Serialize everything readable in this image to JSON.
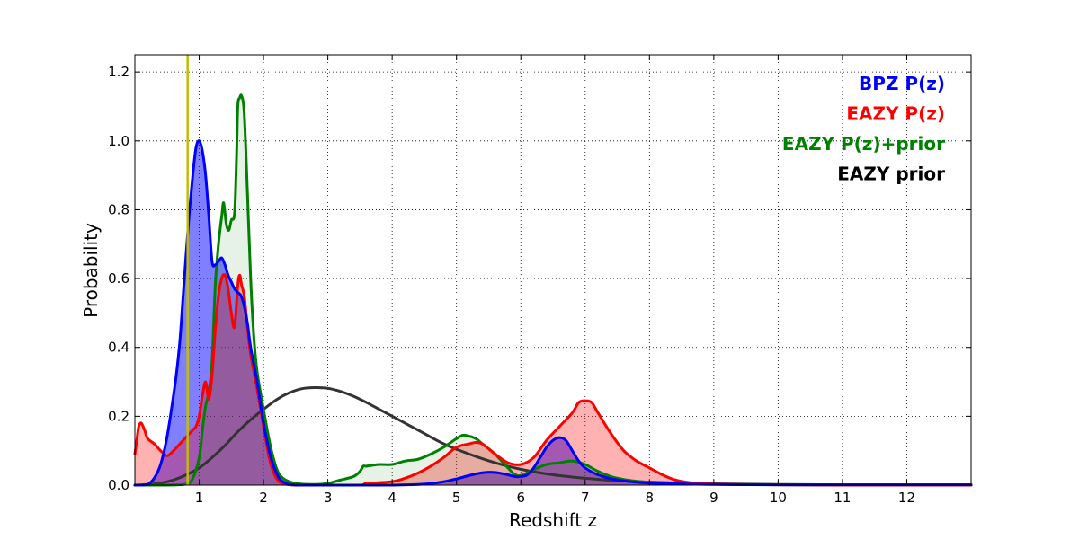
{
  "chart_data": {
    "type": "area",
    "xlabel": "Redshift z",
    "ylabel": "Probability",
    "xlim": [
      0,
      13
    ],
    "ylim": [
      0,
      1.25
    ],
    "x_ticks": [
      1,
      2,
      3,
      4,
      5,
      6,
      7,
      8,
      9,
      10,
      11,
      12
    ],
    "y_ticks": [
      0.0,
      0.2,
      0.4,
      0.6,
      0.8,
      1.0,
      1.2
    ],
    "y_tick_labels": [
      "0.0",
      "0.2",
      "0.4",
      "0.6",
      "0.8",
      "1.0",
      "1.2"
    ],
    "grid": true,
    "legend_position": "top-right",
    "vline": {
      "x": 0.82,
      "color": "#bfbf00"
    },
    "series": [
      {
        "name": "BPZ P(z)",
        "color": "#0000ff",
        "fill": "#0000ff",
        "fill_opacity": 0.5,
        "points": [
          [
            0,
            0
          ],
          [
            0.1,
            0
          ],
          [
            0.2,
            0.002
          ],
          [
            0.3,
            0.02
          ],
          [
            0.4,
            0.06
          ],
          [
            0.5,
            0.14
          ],
          [
            0.6,
            0.26
          ],
          [
            0.65,
            0.33
          ],
          [
            0.7,
            0.42
          ],
          [
            0.75,
            0.55
          ],
          [
            0.8,
            0.68
          ],
          [
            0.85,
            0.8
          ],
          [
            0.9,
            0.9
          ],
          [
            0.95,
            0.98
          ],
          [
            1.0,
            1.0
          ],
          [
            1.05,
            0.97
          ],
          [
            1.1,
            0.9
          ],
          [
            1.15,
            0.78
          ],
          [
            1.2,
            0.65
          ],
          [
            1.25,
            0.64
          ],
          [
            1.3,
            0.65
          ],
          [
            1.35,
            0.66
          ],
          [
            1.4,
            0.64
          ],
          [
            1.45,
            0.61
          ],
          [
            1.5,
            0.59
          ],
          [
            1.55,
            0.57
          ],
          [
            1.6,
            0.56
          ],
          [
            1.65,
            0.55
          ],
          [
            1.7,
            0.52
          ],
          [
            1.75,
            0.47
          ],
          [
            1.8,
            0.4
          ],
          [
            1.9,
            0.3
          ],
          [
            2.0,
            0.18
          ],
          [
            2.1,
            0.09
          ],
          [
            2.2,
            0.035
          ],
          [
            2.3,
            0.01
          ],
          [
            2.5,
            0
          ],
          [
            3.0,
            0
          ],
          [
            3.5,
            0
          ],
          [
            4.0,
            0
          ],
          [
            4.5,
            0.003
          ],
          [
            4.8,
            0.01
          ],
          [
            5.0,
            0.018
          ],
          [
            5.2,
            0.028
          ],
          [
            5.4,
            0.036
          ],
          [
            5.6,
            0.037
          ],
          [
            5.8,
            0.03
          ],
          [
            5.9,
            0.025
          ],
          [
            6.0,
            0.025
          ],
          [
            6.1,
            0.03
          ],
          [
            6.2,
            0.05
          ],
          [
            6.3,
            0.08
          ],
          [
            6.4,
            0.11
          ],
          [
            6.5,
            0.13
          ],
          [
            6.6,
            0.138
          ],
          [
            6.7,
            0.13
          ],
          [
            6.8,
            0.1
          ],
          [
            6.9,
            0.07
          ],
          [
            7.0,
            0.05
          ],
          [
            7.2,
            0.03
          ],
          [
            7.5,
            0.015
          ],
          [
            8.0,
            0.006
          ],
          [
            9.0,
            0.002
          ],
          [
            10.0,
            0.001
          ],
          [
            11.0,
            0.001
          ],
          [
            12.0,
            0.001
          ],
          [
            13.0,
            0.001
          ]
        ]
      },
      {
        "name": "EAZY P(z)",
        "color": "#ff0000",
        "fill": "#ff0000",
        "fill_opacity": 0.3,
        "points": [
          [
            0,
            0.09
          ],
          [
            0.03,
            0.13
          ],
          [
            0.06,
            0.17
          ],
          [
            0.1,
            0.18
          ],
          [
            0.15,
            0.16
          ],
          [
            0.2,
            0.135
          ],
          [
            0.3,
            0.12
          ],
          [
            0.4,
            0.1
          ],
          [
            0.5,
            0.085
          ],
          [
            0.6,
            0.1
          ],
          [
            0.7,
            0.12
          ],
          [
            0.8,
            0.14
          ],
          [
            0.9,
            0.16
          ],
          [
            0.95,
            0.17
          ],
          [
            1.0,
            0.2
          ],
          [
            1.05,
            0.26
          ],
          [
            1.1,
            0.3
          ],
          [
            1.15,
            0.25
          ],
          [
            1.2,
            0.32
          ],
          [
            1.25,
            0.45
          ],
          [
            1.3,
            0.55
          ],
          [
            1.35,
            0.6
          ],
          [
            1.4,
            0.61
          ],
          [
            1.45,
            0.57
          ],
          [
            1.5,
            0.5
          ],
          [
            1.55,
            0.46
          ],
          [
            1.6,
            0.58
          ],
          [
            1.63,
            0.61
          ],
          [
            1.66,
            0.58
          ],
          [
            1.7,
            0.55
          ],
          [
            1.75,
            0.46
          ],
          [
            1.8,
            0.38
          ],
          [
            1.9,
            0.28
          ],
          [
            2.0,
            0.17
          ],
          [
            2.1,
            0.07
          ],
          [
            2.2,
            0.02
          ],
          [
            2.3,
            0.005
          ],
          [
            2.5,
            0
          ],
          [
            3.0,
            0
          ],
          [
            3.5,
            0
          ],
          [
            3.6,
            0.005
          ],
          [
            4.0,
            0.01
          ],
          [
            4.2,
            0.02
          ],
          [
            4.4,
            0.035
          ],
          [
            4.6,
            0.055
          ],
          [
            4.8,
            0.08
          ],
          [
            5.0,
            0.11
          ],
          [
            5.2,
            0.12
          ],
          [
            5.3,
            0.124
          ],
          [
            5.4,
            0.12
          ],
          [
            5.5,
            0.105
          ],
          [
            5.6,
            0.09
          ],
          [
            5.8,
            0.065
          ],
          [
            6.0,
            0.06
          ],
          [
            6.2,
            0.08
          ],
          [
            6.4,
            0.13
          ],
          [
            6.6,
            0.17
          ],
          [
            6.8,
            0.21
          ],
          [
            6.9,
            0.24
          ],
          [
            7.0,
            0.245
          ],
          [
            7.1,
            0.24
          ],
          [
            7.2,
            0.21
          ],
          [
            7.4,
            0.15
          ],
          [
            7.6,
            0.1
          ],
          [
            7.8,
            0.07
          ],
          [
            8.0,
            0.05
          ],
          [
            8.2,
            0.03
          ],
          [
            8.4,
            0.015
          ],
          [
            8.6,
            0.008
          ],
          [
            9.0,
            0.003
          ],
          [
            10.0,
            0.001
          ],
          [
            11.0,
            0
          ],
          [
            12.0,
            0
          ],
          [
            13.0,
            0
          ]
        ]
      },
      {
        "name": "EAZY P(z)+prior",
        "color": "#008000",
        "fill": "#008000",
        "fill_opacity": 0.1,
        "points": [
          [
            0,
            0
          ],
          [
            0.5,
            0
          ],
          [
            0.8,
            0.003
          ],
          [
            0.9,
            0.02
          ],
          [
            1.0,
            0.08
          ],
          [
            1.05,
            0.16
          ],
          [
            1.1,
            0.23
          ],
          [
            1.15,
            0.27
          ],
          [
            1.2,
            0.36
          ],
          [
            1.25,
            0.58
          ],
          [
            1.3,
            0.7
          ],
          [
            1.35,
            0.78
          ],
          [
            1.38,
            0.82
          ],
          [
            1.42,
            0.76
          ],
          [
            1.46,
            0.74
          ],
          [
            1.5,
            0.77
          ],
          [
            1.55,
            0.79
          ],
          [
            1.58,
            0.95
          ],
          [
            1.6,
            1.1
          ],
          [
            1.63,
            1.125
          ],
          [
            1.66,
            1.13
          ],
          [
            1.7,
            1.08
          ],
          [
            1.75,
            0.85
          ],
          [
            1.8,
            0.6
          ],
          [
            1.85,
            0.43
          ],
          [
            1.9,
            0.33
          ],
          [
            2.0,
            0.22
          ],
          [
            2.1,
            0.12
          ],
          [
            2.2,
            0.05
          ],
          [
            2.3,
            0.02
          ],
          [
            2.5,
            0.005
          ],
          [
            2.8,
            0.002
          ],
          [
            3.0,
            0.005
          ],
          [
            3.2,
            0.015
          ],
          [
            3.4,
            0.025
          ],
          [
            3.5,
            0.04
          ],
          [
            3.55,
            0.055
          ],
          [
            3.6,
            0.055
          ],
          [
            3.8,
            0.06
          ],
          [
            4.0,
            0.06
          ],
          [
            4.2,
            0.07
          ],
          [
            4.4,
            0.075
          ],
          [
            4.6,
            0.09
          ],
          [
            4.8,
            0.11
          ],
          [
            5.0,
            0.135
          ],
          [
            5.1,
            0.145
          ],
          [
            5.2,
            0.142
          ],
          [
            5.3,
            0.135
          ],
          [
            5.4,
            0.12
          ],
          [
            5.6,
            0.09
          ],
          [
            5.8,
            0.05
          ],
          [
            5.9,
            0.032
          ],
          [
            6.0,
            0.028
          ],
          [
            6.2,
            0.045
          ],
          [
            6.4,
            0.06
          ],
          [
            6.6,
            0.065
          ],
          [
            6.8,
            0.07
          ],
          [
            7.0,
            0.06
          ],
          [
            7.2,
            0.04
          ],
          [
            7.5,
            0.02
          ],
          [
            8.0,
            0.008
          ],
          [
            9.0,
            0.003
          ],
          [
            10.0,
            0.001
          ],
          [
            11.0,
            0
          ],
          [
            12.0,
            0
          ],
          [
            13.0,
            0
          ]
        ]
      },
      {
        "name": "EAZY prior",
        "color": "#333333",
        "fill": "none",
        "fill_opacity": 0,
        "points": [
          [
            0,
            0
          ],
          [
            0.2,
            0.002
          ],
          [
            0.4,
            0.006
          ],
          [
            0.6,
            0.015
          ],
          [
            0.8,
            0.03
          ],
          [
            1.0,
            0.05
          ],
          [
            1.2,
            0.08
          ],
          [
            1.4,
            0.115
          ],
          [
            1.6,
            0.155
          ],
          [
            1.8,
            0.19
          ],
          [
            2.0,
            0.22
          ],
          [
            2.2,
            0.248
          ],
          [
            2.4,
            0.268
          ],
          [
            2.6,
            0.28
          ],
          [
            2.8,
            0.283
          ],
          [
            3.0,
            0.281
          ],
          [
            3.2,
            0.272
          ],
          [
            3.4,
            0.258
          ],
          [
            3.6,
            0.24
          ],
          [
            3.8,
            0.22
          ],
          [
            4.0,
            0.2
          ],
          [
            4.4,
            0.16
          ],
          [
            4.8,
            0.12
          ],
          [
            5.2,
            0.09
          ],
          [
            5.6,
            0.065
          ],
          [
            6.0,
            0.046
          ],
          [
            6.5,
            0.03
          ],
          [
            7.0,
            0.02
          ],
          [
            7.5,
            0.013
          ],
          [
            8.0,
            0.009
          ],
          [
            8.5,
            0.006
          ],
          [
            9.0,
            0.004
          ],
          [
            10.0,
            0.002
          ],
          [
            11.0,
            0.001
          ],
          [
            12.0,
            0.001
          ],
          [
            13.0,
            0.001
          ]
        ]
      }
    ],
    "legend": [
      {
        "label": "BPZ P(z)",
        "color": "#0000ff"
      },
      {
        "label": "EAZY P(z)",
        "color": "#ff0000"
      },
      {
        "label": "EAZY P(z)+prior",
        "color": "#008000"
      },
      {
        "label": "EAZY prior",
        "color": "#000000"
      }
    ]
  }
}
